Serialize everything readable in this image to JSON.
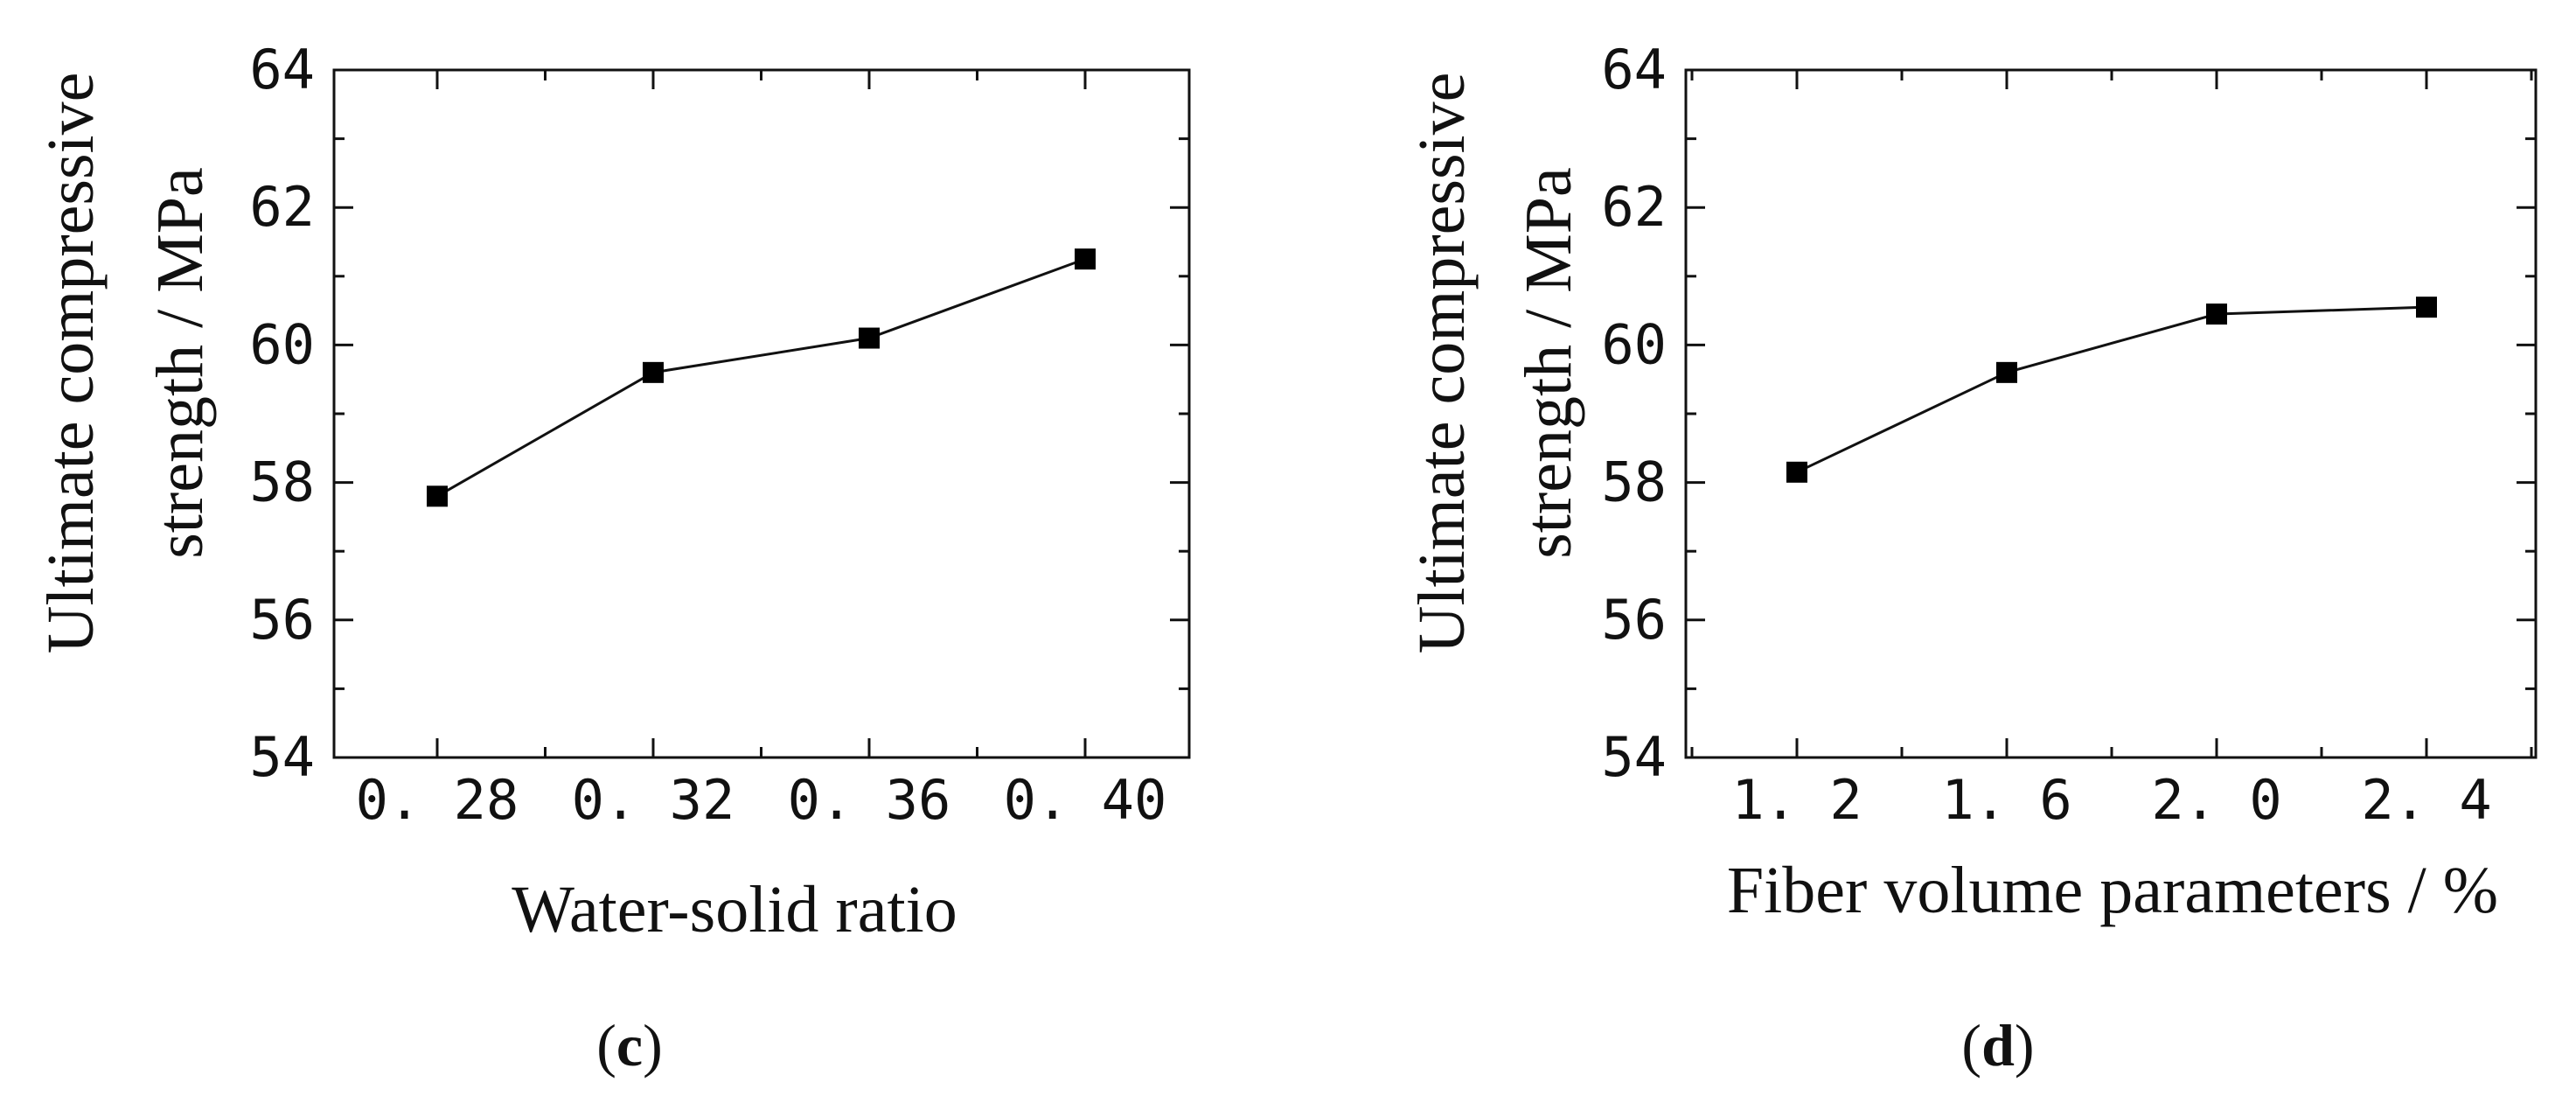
{
  "chart_data": [
    {
      "type": "line",
      "panel": "c",
      "title": "",
      "xlabel": "Water-solid ratio",
      "ylabel_line1": "Ultimate compressive",
      "ylabel_line2": "strength / MPa",
      "categories": [
        "0. 28",
        "0. 32",
        "0. 36",
        "0. 40"
      ],
      "x": [
        0.28,
        0.32,
        0.36,
        0.4
      ],
      "values": [
        57.8,
        59.6,
        60.1,
        61.25
      ],
      "ylim": [
        54,
        64
      ],
      "yticks": [
        "54",
        "56",
        "58",
        "60",
        "62",
        "64"
      ],
      "grid": false,
      "marker": "square",
      "color": "#000000"
    },
    {
      "type": "line",
      "panel": "d",
      "title": "",
      "xlabel": "Fiber volume parameters / %",
      "ylabel_line1": "Ultimate compressive",
      "ylabel_line2": "strength / MPa",
      "categories": [
        "1. 2",
        "1. 6",
        "2. 0",
        "2. 4"
      ],
      "x": [
        1.2,
        1.6,
        2.0,
        2.4
      ],
      "values": [
        58.15,
        59.6,
        60.45,
        60.55
      ],
      "ylim": [
        54,
        64
      ],
      "yticks": [
        "54",
        "56",
        "58",
        "60",
        "62",
        "64"
      ],
      "grid": false,
      "marker": "square",
      "color": "#000000"
    }
  ]
}
